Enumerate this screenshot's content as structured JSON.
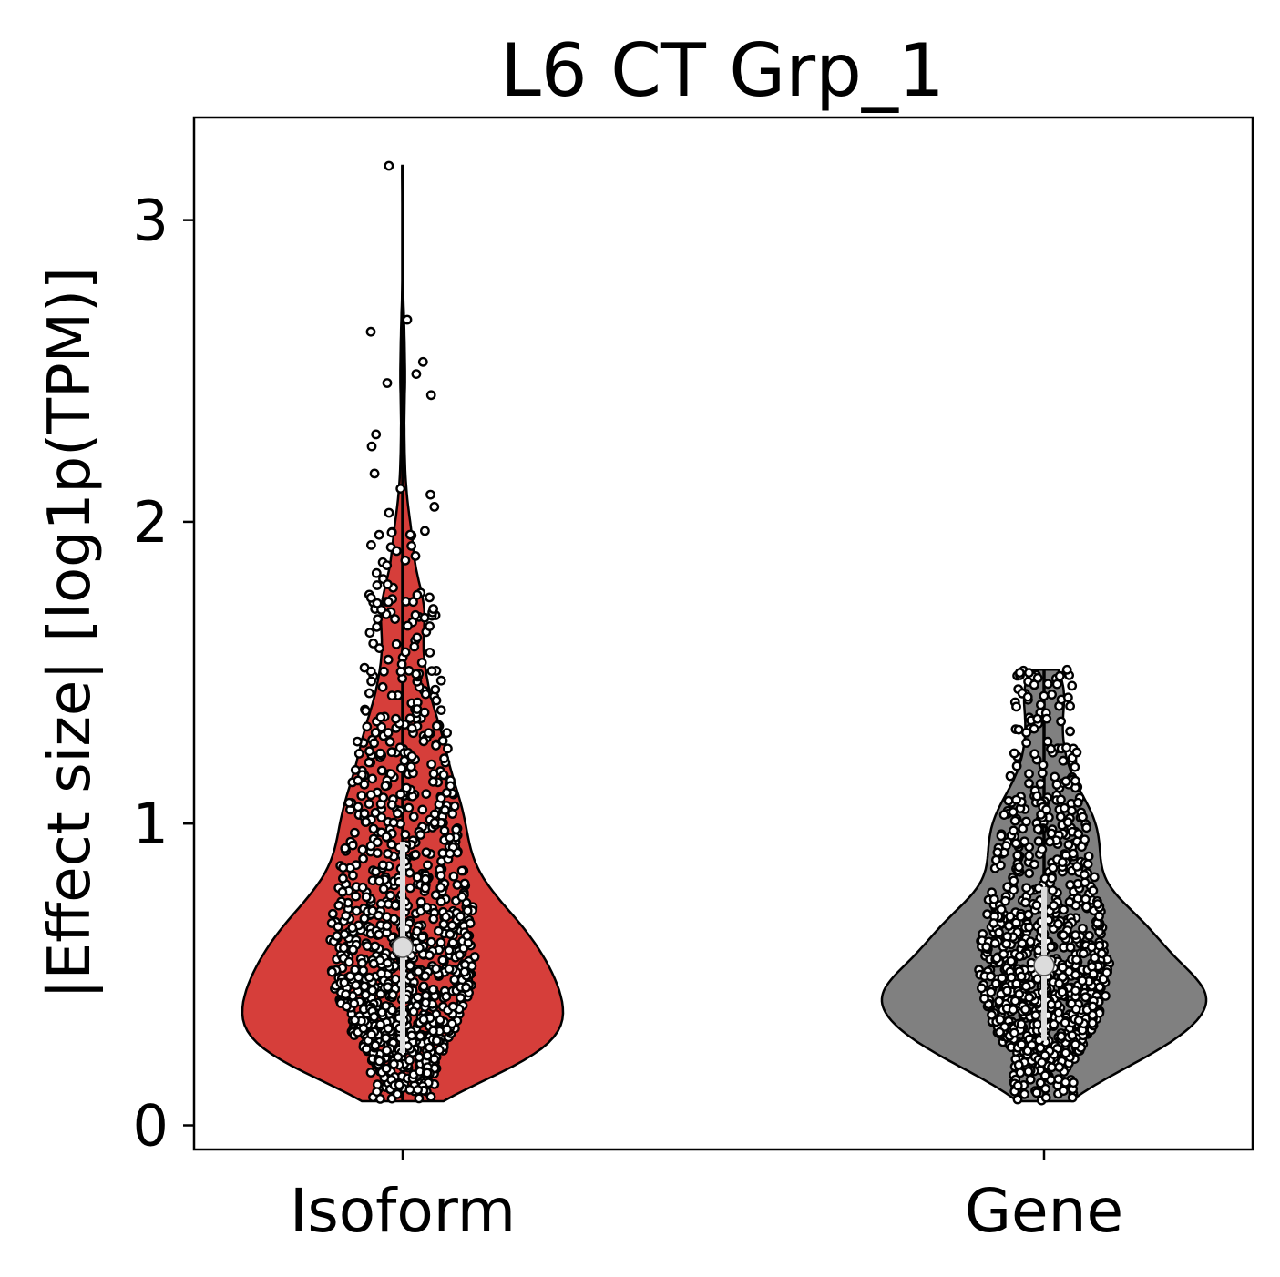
{
  "chart_data": {
    "type": "violin",
    "title": "L6 CT Grp_1",
    "xlabel": "",
    "ylabel": "|Effect size| [log1p(TPM)]",
    "ylim": [
      -0.08,
      3.34
    ],
    "yticks": [
      0,
      1,
      2,
      3
    ],
    "grid": false,
    "categories": [
      "Isoform",
      "Gene"
    ],
    "series": [
      {
        "name": "Isoform",
        "color": "#d63e3a",
        "min": 0.08,
        "max": 3.18,
        "q1": 0.24,
        "median": 0.59,
        "q3": 0.94,
        "n_points": 1100,
        "notable_points": [
          3.18,
          2.67,
          2.63,
          2.53,
          2.49,
          2.46,
          2.42,
          2.29,
          2.25,
          2.16,
          2.11,
          2.09,
          2.05,
          2.03,
          1.97,
          1.92,
          0.45
        ]
      },
      {
        "name": "Gene",
        "color": "#808080",
        "min": 0.08,
        "max": 1.51,
        "q1": 0.28,
        "median": 0.53,
        "q3": 0.79,
        "n_points": 1000,
        "notable_points": [
          1.51,
          1.5,
          1.47,
          1.46,
          1.42,
          1.14,
          0.94,
          0.74,
          0.57,
          0.35,
          0.24
        ]
      }
    ]
  }
}
